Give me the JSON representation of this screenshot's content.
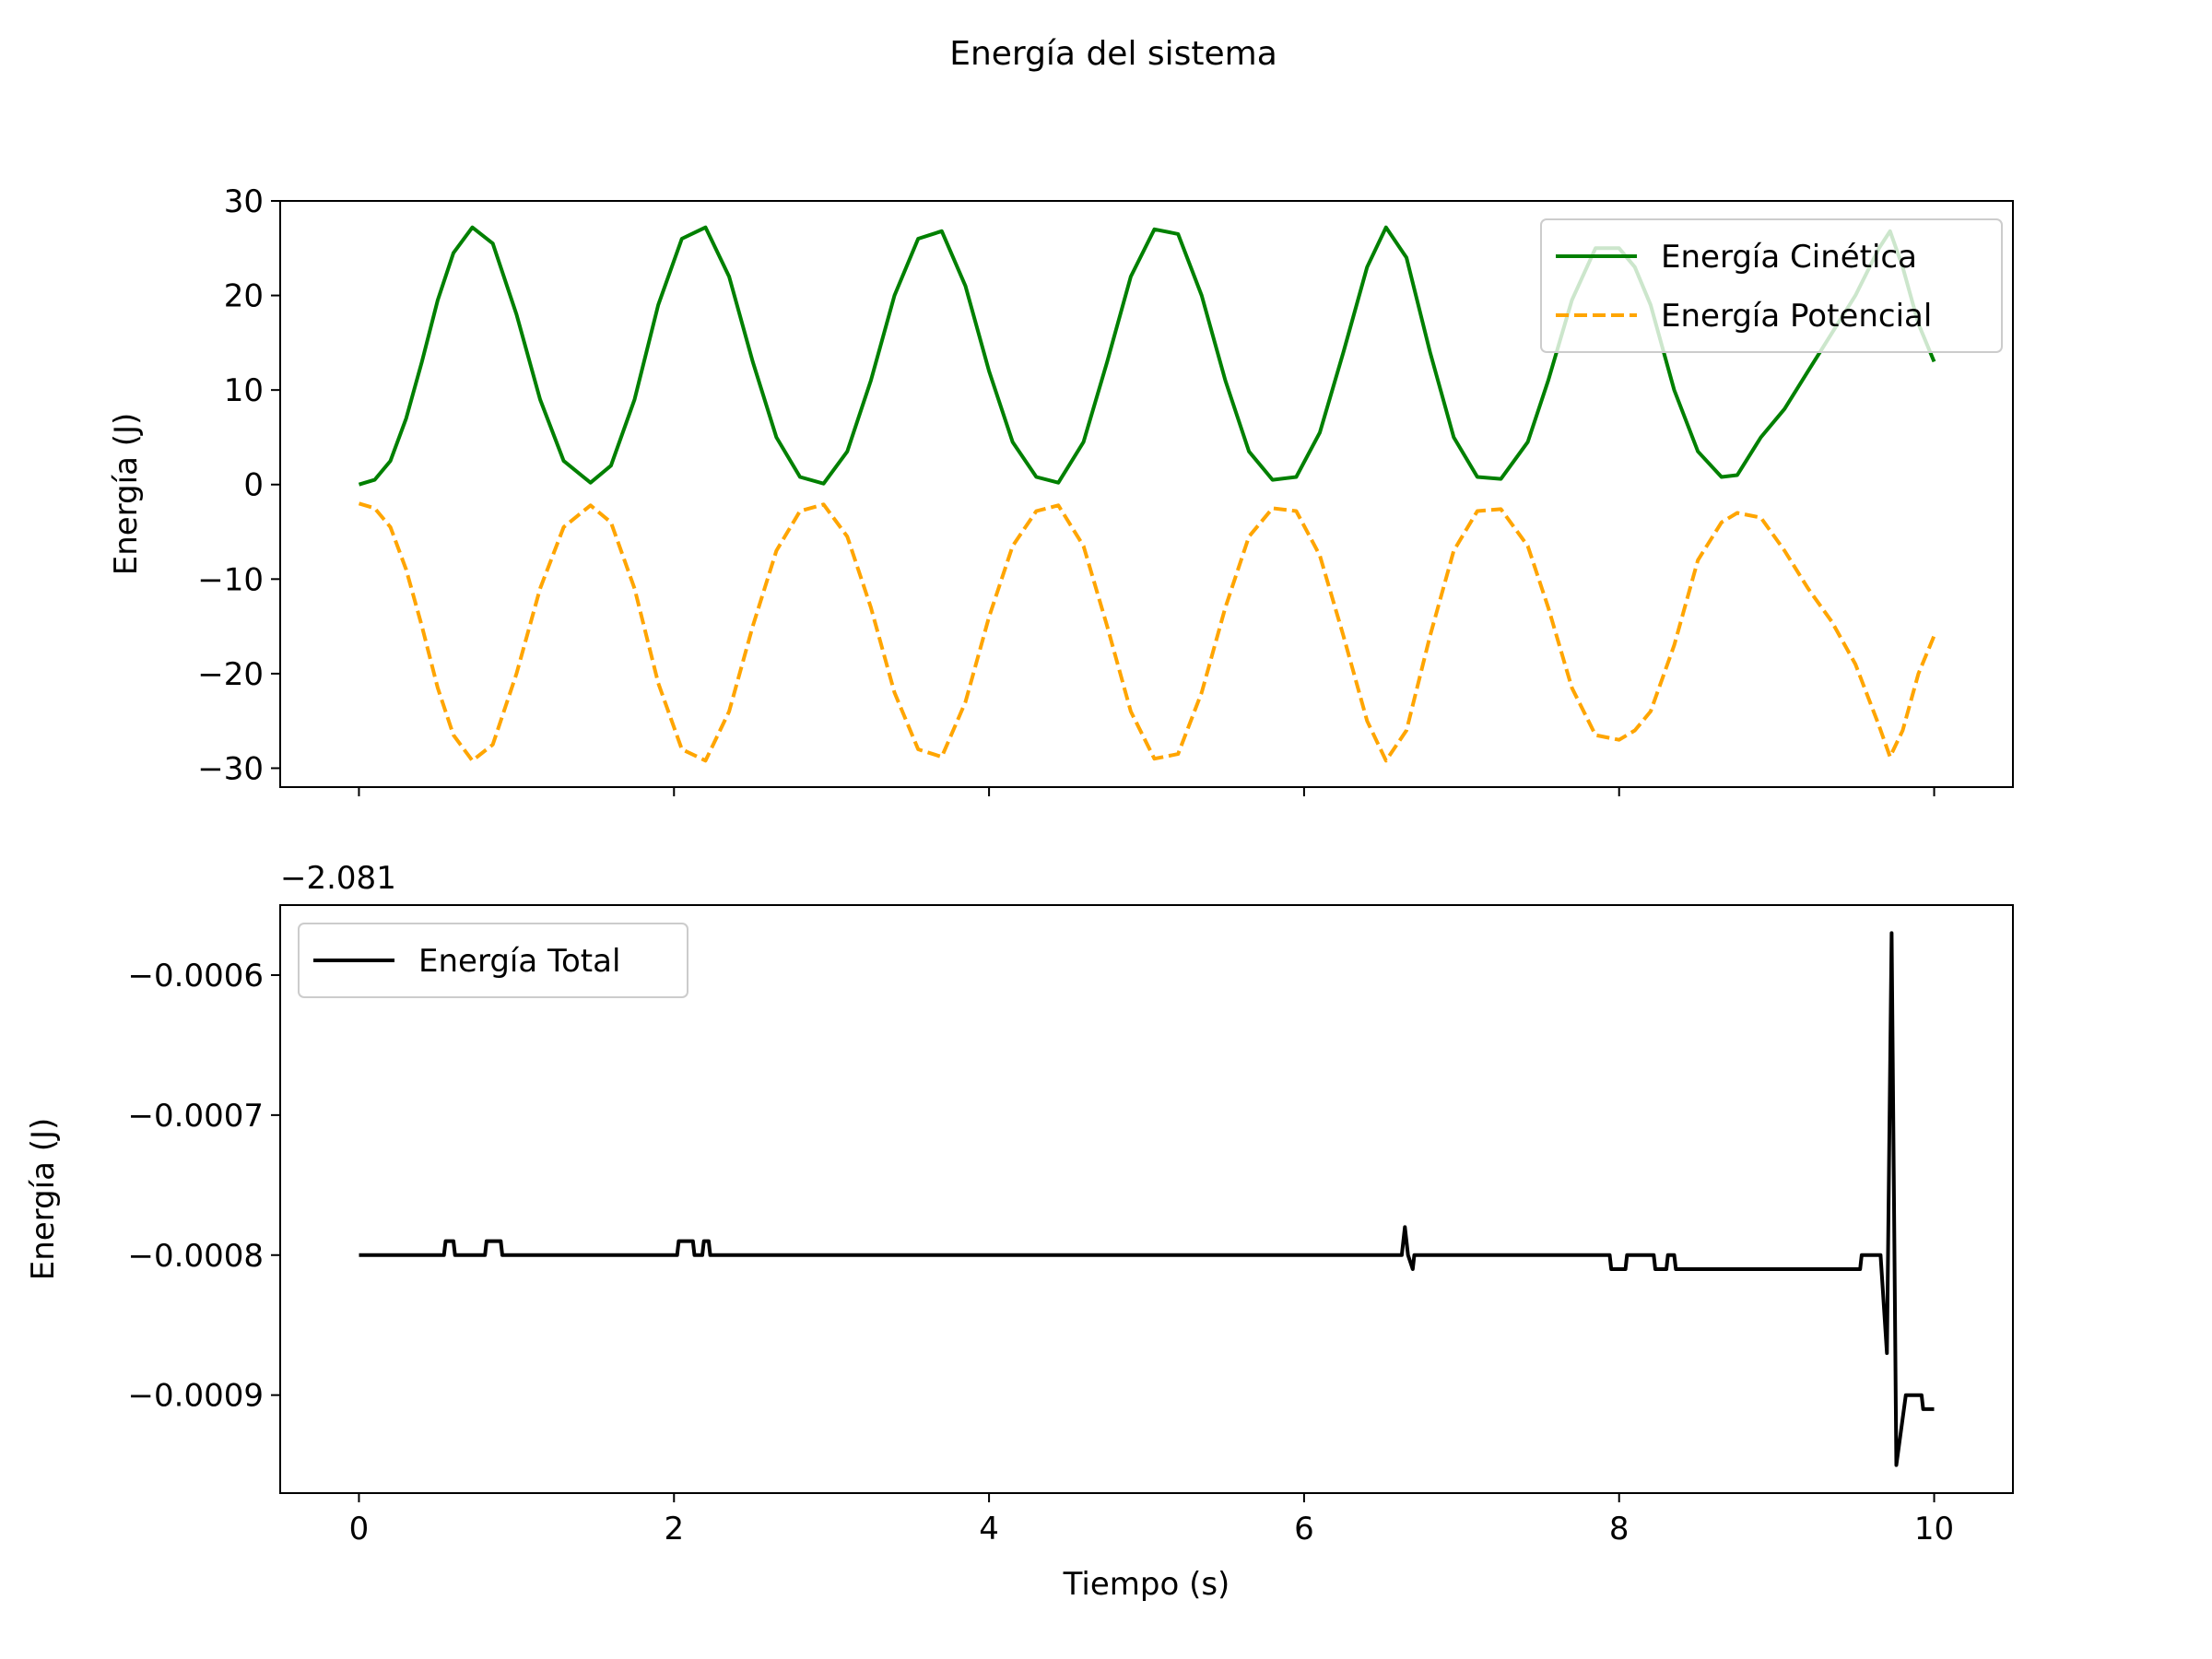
{
  "suptitle": "Energía del sistema",
  "chart_data": [
    {
      "type": "line",
      "ylabel": "Energía (J)",
      "xlim": [
        -0.5,
        10.5
      ],
      "ylim": [
        -32,
        30
      ],
      "yticks": [
        30,
        20,
        10,
        0,
        -10,
        -20,
        -30
      ],
      "ytick_labels": [
        "30",
        "20",
        "10",
        "0",
        "−10",
        "−20",
        "−30"
      ],
      "xticks": [
        0,
        2,
        4,
        6,
        8,
        10
      ],
      "xtick_labels_visible": false,
      "legend": {
        "position": "upper right"
      },
      "series": [
        {
          "name": "Energía Cinética",
          "color": "#008000",
          "style": "solid",
          "x": [
            0,
            0.1,
            0.2,
            0.3,
            0.4,
            0.5,
            0.6,
            0.72,
            0.85,
            1.0,
            1.15,
            1.3,
            1.47,
            1.6,
            1.75,
            1.9,
            2.05,
            2.2,
            2.35,
            2.5,
            2.65,
            2.8,
            2.95,
            3.1,
            3.25,
            3.4,
            3.55,
            3.7,
            3.85,
            4.0,
            4.15,
            4.3,
            4.44,
            4.6,
            4.75,
            4.9,
            5.05,
            5.2,
            5.35,
            5.5,
            5.65,
            5.8,
            5.95,
            6.1,
            6.25,
            6.4,
            6.52,
            6.65,
            6.8,
            6.95,
            7.1,
            7.25,
            7.42,
            7.55,
            7.7,
            7.85,
            8.0,
            8.1,
            8.2,
            8.35,
            8.5,
            8.65,
            8.75,
            8.9,
            9.05,
            9.2,
            9.35,
            9.5,
            9.65,
            9.72,
            9.8,
            9.9,
            10.0
          ],
          "y": [
            0,
            0.5,
            2.5,
            7,
            13,
            19.5,
            24.5,
            27.2,
            25.5,
            18,
            9,
            2.5,
            0.2,
            2,
            9,
            19,
            26,
            27.2,
            22,
            13,
            5,
            0.8,
            0.1,
            3.5,
            11,
            20,
            26,
            26.8,
            21,
            12,
            4.5,
            0.8,
            0.2,
            4.5,
            13,
            22,
            27,
            26.5,
            20,
            11,
            3.5,
            0.5,
            0.8,
            5.5,
            14,
            23,
            27.2,
            24,
            14,
            5,
            0.8,
            0.6,
            4.5,
            11,
            19.5,
            25,
            25,
            23,
            19,
            10,
            3.5,
            0.8,
            1,
            5,
            8,
            12,
            16,
            20,
            25,
            26.8,
            23,
            17,
            13
          ]
        },
        {
          "name": "Energía Potencial",
          "color": "#ffa500",
          "style": "dashed",
          "x": [
            0,
            0.1,
            0.2,
            0.3,
            0.4,
            0.5,
            0.6,
            0.72,
            0.85,
            1.0,
            1.15,
            1.3,
            1.47,
            1.6,
            1.75,
            1.9,
            2.05,
            2.2,
            2.35,
            2.5,
            2.65,
            2.8,
            2.95,
            3.1,
            3.25,
            3.4,
            3.55,
            3.7,
            3.85,
            4.0,
            4.15,
            4.3,
            4.44,
            4.6,
            4.75,
            4.9,
            5.05,
            5.2,
            5.35,
            5.5,
            5.65,
            5.8,
            5.95,
            6.1,
            6.25,
            6.4,
            6.52,
            6.65,
            6.8,
            6.95,
            7.1,
            7.25,
            7.42,
            7.55,
            7.7,
            7.85,
            8.0,
            8.1,
            8.2,
            8.35,
            8.5,
            8.65,
            8.75,
            8.9,
            9.05,
            9.2,
            9.35,
            9.5,
            9.65,
            9.72,
            9.8,
            9.9,
            10.0
          ],
          "y": [
            -2,
            -2.5,
            -4.5,
            -9,
            -15,
            -21.5,
            -26.5,
            -29.2,
            -27.5,
            -20,
            -11,
            -4.5,
            -2.2,
            -4,
            -11,
            -21,
            -28,
            -29.2,
            -24,
            -15,
            -7,
            -2.8,
            -2.1,
            -5.5,
            -13,
            -22,
            -28,
            -28.8,
            -23,
            -14,
            -6.5,
            -2.8,
            -2.2,
            -6.5,
            -15,
            -24,
            -29,
            -28.5,
            -22,
            -13,
            -5.5,
            -2.5,
            -2.8,
            -7.5,
            -16,
            -25,
            -29.2,
            -26,
            -16,
            -7,
            -2.8,
            -2.6,
            -6.5,
            -13,
            -21.5,
            -26.5,
            -27,
            -26,
            -24,
            -17,
            -8,
            -4,
            -3,
            -3.5,
            -7,
            -11,
            -14.5,
            -19,
            -25.5,
            -28.8,
            -26,
            -20,
            -16
          ]
        }
      ]
    },
    {
      "type": "line",
      "xlabel": "Tiempo (s)",
      "ylabel": "Energía (J)",
      "offset_text": "−2.081",
      "xlim": [
        -0.5,
        10.5
      ],
      "ylim": [
        -0.00097,
        -0.00055
      ],
      "yticks": [
        -0.0006,
        -0.0007,
        -0.0008,
        -0.0009
      ],
      "ytick_labels": [
        "−0.0006",
        "−0.0007",
        "−0.0008",
        "−0.0009"
      ],
      "xticks": [
        0,
        2,
        4,
        6,
        8,
        10
      ],
      "xtick_labels": [
        "0",
        "2",
        "4",
        "6",
        "8",
        "10"
      ],
      "legend": {
        "position": "upper left"
      },
      "series": [
        {
          "name": "Energía Total",
          "color": "#000000",
          "style": "solid",
          "x": [
            0,
            0.54,
            0.55,
            0.6,
            0.61,
            0.8,
            0.81,
            0.9,
            0.91,
            2.02,
            2.03,
            2.12,
            2.13,
            2.18,
            2.19,
            2.22,
            2.23,
            6.62,
            6.64,
            6.66,
            6.69,
            6.7,
            6.72,
            7.94,
            7.95,
            8.04,
            8.05,
            8.22,
            8.23,
            8.3,
            8.31,
            8.35,
            8.36,
            9.53,
            9.54,
            9.66,
            9.7,
            9.73,
            9.76,
            9.82,
            9.83,
            9.92,
            9.93,
            10.0
          ],
          "y": [
            -0.0008,
            -0.0008,
            -0.00079,
            -0.00079,
            -0.0008,
            -0.0008,
            -0.00079,
            -0.00079,
            -0.0008,
            -0.0008,
            -0.00079,
            -0.00079,
            -0.0008,
            -0.0008,
            -0.00079,
            -0.00079,
            -0.0008,
            -0.0008,
            -0.00078,
            -0.0008,
            -0.00081,
            -0.0008,
            -0.0008,
            -0.0008,
            -0.00081,
            -0.00081,
            -0.0008,
            -0.0008,
            -0.00081,
            -0.00081,
            -0.0008,
            -0.0008,
            -0.00081,
            -0.00081,
            -0.0008,
            -0.0008,
            -0.00087,
            -0.00057,
            -0.00095,
            -0.0009,
            -0.0009,
            -0.0009,
            -0.00091,
            -0.00091
          ]
        }
      ]
    }
  ]
}
